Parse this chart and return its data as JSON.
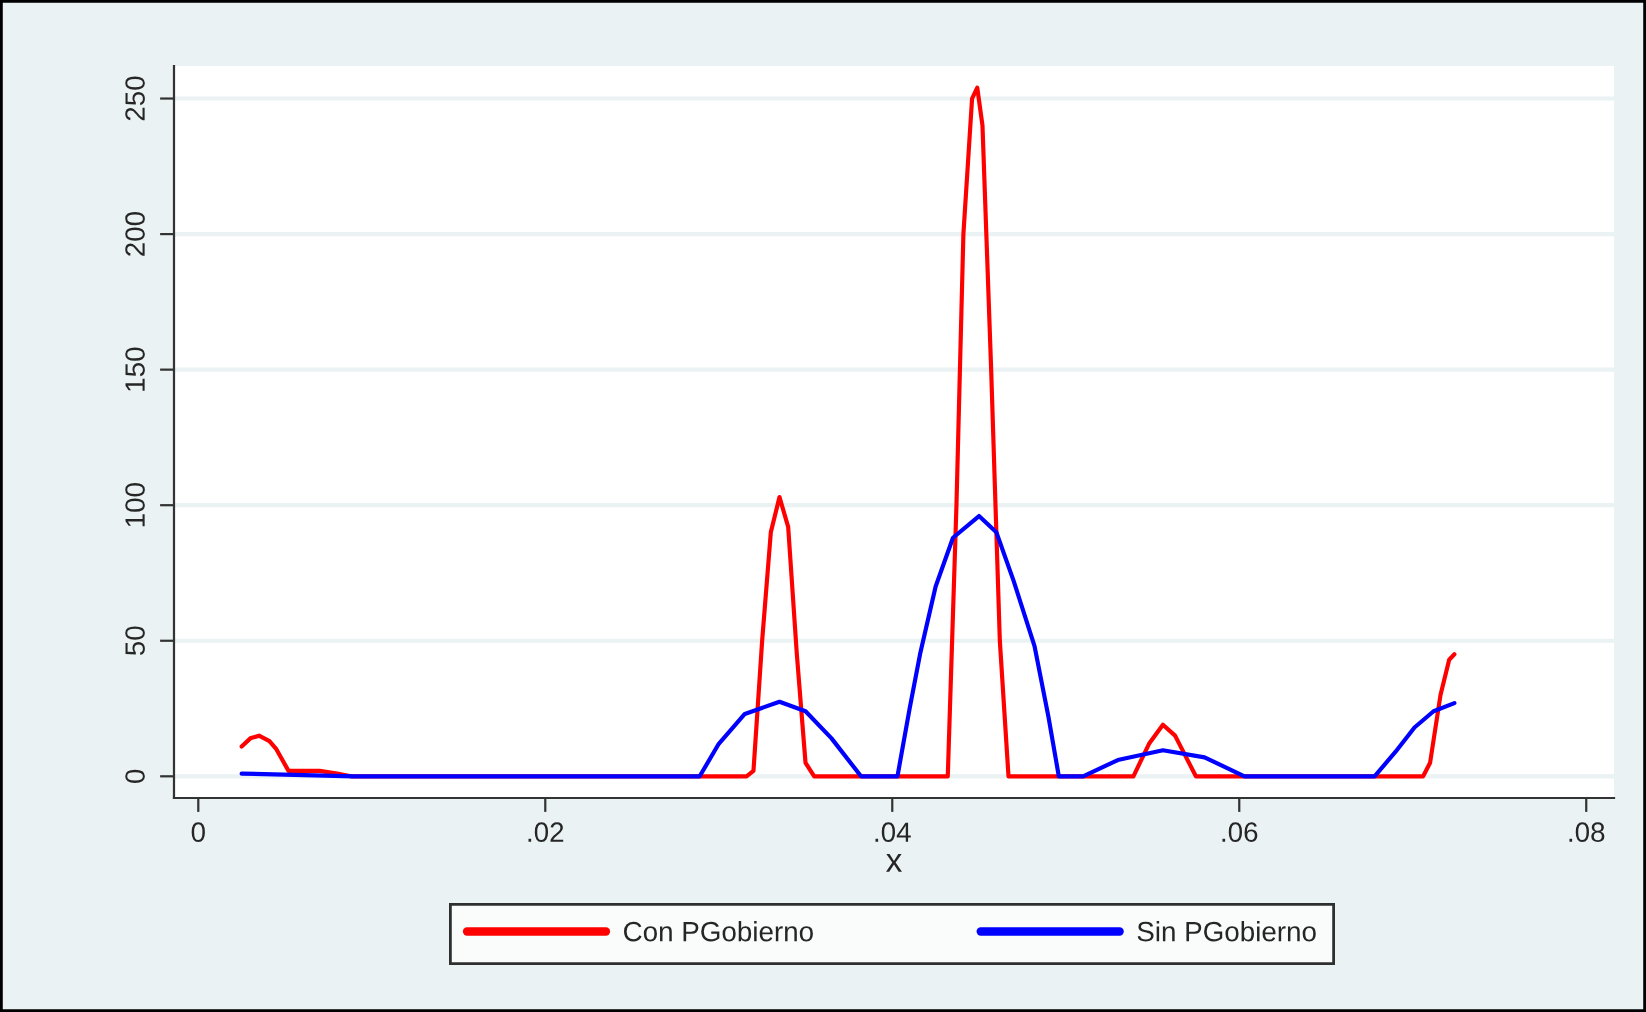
{
  "chart_data": {
    "type": "line",
    "xlabel": "x",
    "xlim": [
      -0.0014,
      0.0816
    ],
    "ylim": [
      -8,
      262
    ],
    "xticks": [
      {
        "value": 0,
        "label": "0"
      },
      {
        "value": 0.02,
        "label": ".02"
      },
      {
        "value": 0.04,
        "label": ".04"
      },
      {
        "value": 0.06,
        "label": ".06"
      },
      {
        "value": 0.08,
        "label": ".08"
      }
    ],
    "yticks": [
      0,
      50,
      100,
      150,
      200,
      250
    ],
    "grid": "y",
    "legend": "bottom",
    "line_style": "solid",
    "marker": "none",
    "series": [
      {
        "name": "Con PGobierno",
        "color": "#ff0000",
        "x": [
          0.0025,
          0.003,
          0.0035,
          0.0041,
          0.0045,
          0.0052,
          0.006,
          0.007,
          0.008,
          0.0088,
          0.0316,
          0.032,
          0.0325,
          0.033,
          0.0335,
          0.034,
          0.0345,
          0.035,
          0.0355,
          0.0432,
          0.0437,
          0.0441,
          0.0446,
          0.0449,
          0.0452,
          0.0457,
          0.0462,
          0.0467,
          0.0539,
          0.0548,
          0.0556,
          0.0563,
          0.0575,
          0.0706,
          0.071,
          0.0716,
          0.0721,
          0.0724
        ],
        "values": [
          11,
          14,
          15,
          13,
          10,
          2,
          2,
          2,
          1,
          0,
          0,
          2,
          50,
          90,
          103,
          92,
          45,
          5,
          0,
          0,
          100,
          200,
          250,
          254,
          240,
          150,
          50,
          0,
          0,
          12,
          19,
          15,
          0,
          0,
          5,
          30,
          43,
          45
        ]
      },
      {
        "name": "Sin PGobierno",
        "color": "#0000ff",
        "x": [
          0.0025,
          0.009,
          0.0289,
          0.03,
          0.0315,
          0.0335,
          0.035,
          0.0365,
          0.0382,
          0.0403,
          0.041,
          0.0416,
          0.0425,
          0.0435,
          0.045,
          0.046,
          0.047,
          0.0482,
          0.049,
          0.0496,
          0.051,
          0.053,
          0.0556,
          0.058,
          0.0603,
          0.0678,
          0.069,
          0.0701,
          0.0712,
          0.0724
        ],
        "values": [
          1,
          0,
          0,
          12,
          23,
          27.5,
          24,
          14,
          0,
          0,
          25,
          45,
          70,
          88,
          96,
          90,
          72,
          48,
          22,
          0,
          0,
          6,
          9.6,
          7,
          0,
          0,
          9,
          18,
          24,
          27
        ]
      }
    ]
  }
}
